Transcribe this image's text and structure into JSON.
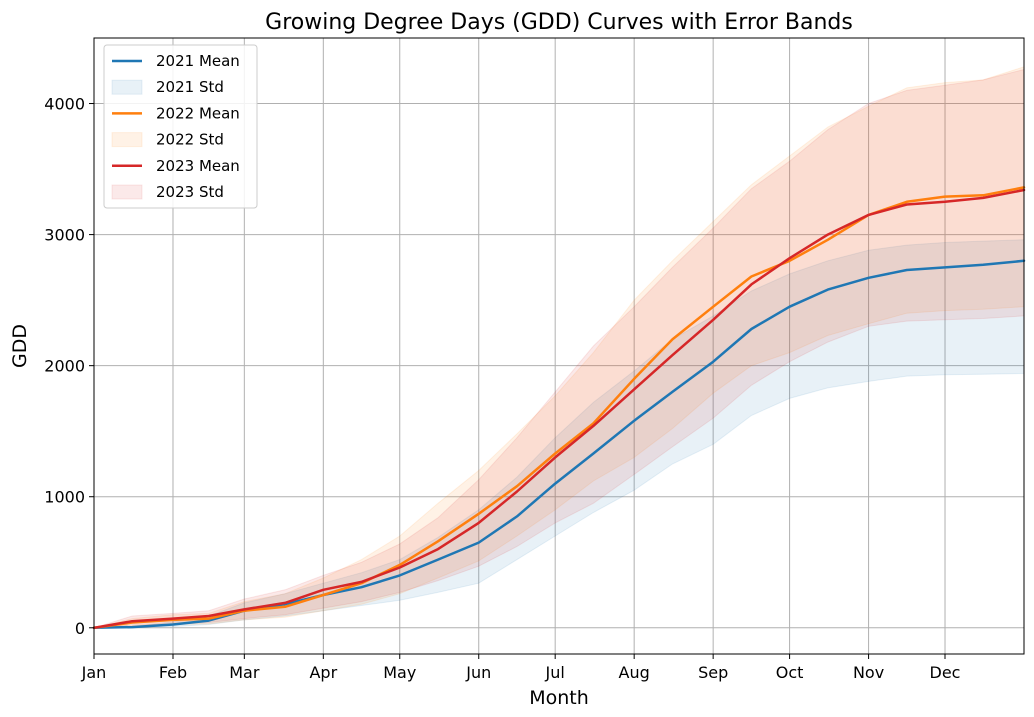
{
  "chart_data": {
    "type": "line",
    "title": "Growing Degree Days (GDD) Curves with Error Bands",
    "xlabel": "Month",
    "ylabel": "GDD",
    "xlim": [
      0,
      365
    ],
    "ylim": [
      -200,
      4500
    ],
    "grid": true,
    "legend_position": "top-left",
    "x_ticks": [
      {
        "label": "Jan",
        "day": 0
      },
      {
        "label": "Feb",
        "day": 31
      },
      {
        "label": "Mar",
        "day": 59
      },
      {
        "label": "Apr",
        "day": 90
      },
      {
        "label": "May",
        "day": 120
      },
      {
        "label": "Jun",
        "day": 151
      },
      {
        "label": "Jul",
        "day": 181
      },
      {
        "label": "Aug",
        "day": 212
      },
      {
        "label": "Sep",
        "day": 243
      },
      {
        "label": "Oct",
        "day": 273
      },
      {
        "label": "Nov",
        "day": 304
      },
      {
        "label": "Dec",
        "day": 334
      }
    ],
    "y_ticks": [
      {
        "label": "0",
        "value": 0
      },
      {
        "label": "1000",
        "value": 1000
      },
      {
        "label": "2000",
        "value": 2000
      },
      {
        "label": "3000",
        "value": 3000
      },
      {
        "label": "4000",
        "value": 4000
      }
    ],
    "x": [
      0,
      15,
      31,
      45,
      59,
      75,
      90,
      105,
      120,
      135,
      151,
      166,
      181,
      196,
      212,
      227,
      243,
      258,
      273,
      288,
      304,
      319,
      334,
      349,
      365
    ],
    "series": [
      {
        "name": "2021",
        "mean_label": "2021 Mean",
        "std_label": "2021 Std",
        "color": "#1f77b4",
        "mean": [
          0,
          5,
          25,
          55,
          130,
          180,
          250,
          310,
          400,
          520,
          650,
          850,
          1100,
          1330,
          1580,
          1800,
          2030,
          2280,
          2450,
          2580,
          2670,
          2730,
          2750,
          2770,
          2800
        ],
        "lower": [
          0,
          2,
          10,
          25,
          60,
          90,
          130,
          170,
          210,
          270,
          340,
          520,
          700,
          880,
          1050,
          1250,
          1400,
          1620,
          1750,
          1830,
          1880,
          1920,
          1930,
          1935,
          1940
        ],
        "upper": [
          0,
          10,
          45,
          90,
          190,
          260,
          340,
          420,
          520,
          690,
          900,
          1150,
          1450,
          1720,
          1960,
          2200,
          2380,
          2570,
          2700,
          2800,
          2880,
          2920,
          2940,
          2950,
          2960
        ]
      },
      {
        "name": "2022",
        "mean_label": "2022 Mean",
        "std_label": "2022 Std",
        "color": "#ff7f0e",
        "mean": [
          0,
          40,
          60,
          70,
          130,
          160,
          250,
          340,
          480,
          660,
          870,
          1080,
          1330,
          1560,
          1900,
          2200,
          2450,
          2680,
          2800,
          2960,
          3150,
          3250,
          3290,
          3300,
          3360
        ],
        "lower": [
          0,
          15,
          25,
          30,
          60,
          80,
          130,
          180,
          260,
          380,
          510,
          700,
          900,
          1120,
          1300,
          1520,
          1790,
          2000,
          2100,
          2230,
          2320,
          2400,
          2420,
          2430,
          2450
        ],
        "upper": [
          0,
          70,
          100,
          110,
          200,
          260,
          380,
          520,
          700,
          950,
          1200,
          1480,
          1770,
          2100,
          2500,
          2800,
          3100,
          3380,
          3600,
          3820,
          3980,
          4120,
          4160,
          4180,
          4280
        ]
      },
      {
        "name": "2023",
        "mean_label": "2023 Mean",
        "std_label": "2023 Std",
        "color": "#d62728",
        "mean": [
          0,
          50,
          70,
          90,
          140,
          190,
          290,
          350,
          460,
          600,
          800,
          1040,
          1300,
          1540,
          1820,
          2080,
          2350,
          2620,
          2820,
          3000,
          3150,
          3230,
          3250,
          3280,
          3340
        ],
        "lower": [
          0,
          20,
          30,
          40,
          70,
          100,
          150,
          200,
          270,
          360,
          470,
          620,
          800,
          950,
          1170,
          1380,
          1600,
          1850,
          2030,
          2180,
          2300,
          2340,
          2350,
          2360,
          2380
        ],
        "upper": [
          0,
          90,
          110,
          130,
          220,
          290,
          400,
          500,
          640,
          840,
          1130,
          1450,
          1800,
          2150,
          2450,
          2750,
          3050,
          3350,
          3560,
          3800,
          4000,
          4100,
          4140,
          4180,
          4260
        ]
      }
    ]
  }
}
